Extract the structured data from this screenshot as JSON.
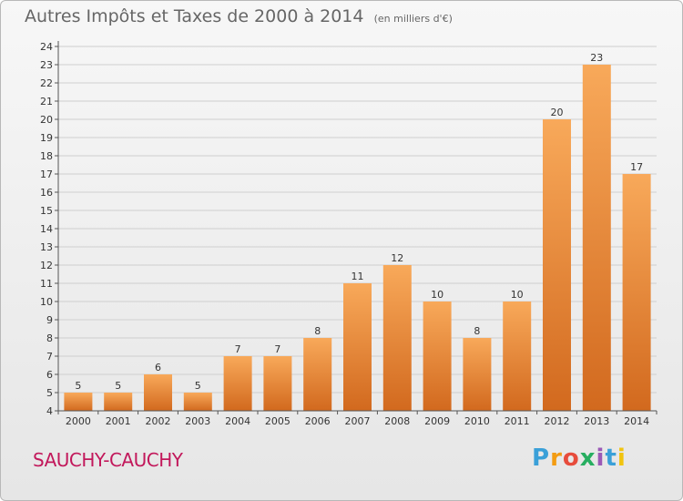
{
  "title": "Autres Impôts et Taxes de 2000 à 2014",
  "title_unit": "(en milliers d'€)",
  "location": "SAUCHY-CAUCHY",
  "logo": {
    "text": "Proxiti",
    "letters": [
      "P",
      "r",
      "o",
      "x",
      "i",
      "t",
      "i"
    ],
    "colors": [
      "#3aa0d8",
      "#f39c12",
      "#e74c3c",
      "#27ae60",
      "#9b59b6",
      "#3aa0d8",
      "#f1c40f"
    ]
  },
  "colors": {
    "bar_top": "#f8a95a",
    "bar_bottom": "#d2691e",
    "axis": "#555555",
    "grid": "#cfcfcf",
    "text": "#333333"
  },
  "chart_data": {
    "type": "bar",
    "title": "Autres Impôts et Taxes de 2000 à 2014",
    "categories": [
      "2000",
      "2001",
      "2002",
      "2003",
      "2004",
      "2005",
      "2006",
      "2007",
      "2008",
      "2009",
      "2010",
      "2011",
      "2012",
      "2013",
      "2014"
    ],
    "values": [
      5,
      5,
      6,
      5,
      7,
      7,
      8,
      11,
      12,
      10,
      8,
      10,
      20,
      23,
      17
    ],
    "ylim": [
      4,
      24
    ],
    "yticks": [
      4,
      5,
      6,
      7,
      8,
      9,
      10,
      11,
      12,
      13,
      14,
      15,
      16,
      17,
      18,
      19,
      20,
      21,
      22,
      23,
      24
    ],
    "data_labels": true,
    "grid": "horizontal",
    "legend": "none"
  }
}
